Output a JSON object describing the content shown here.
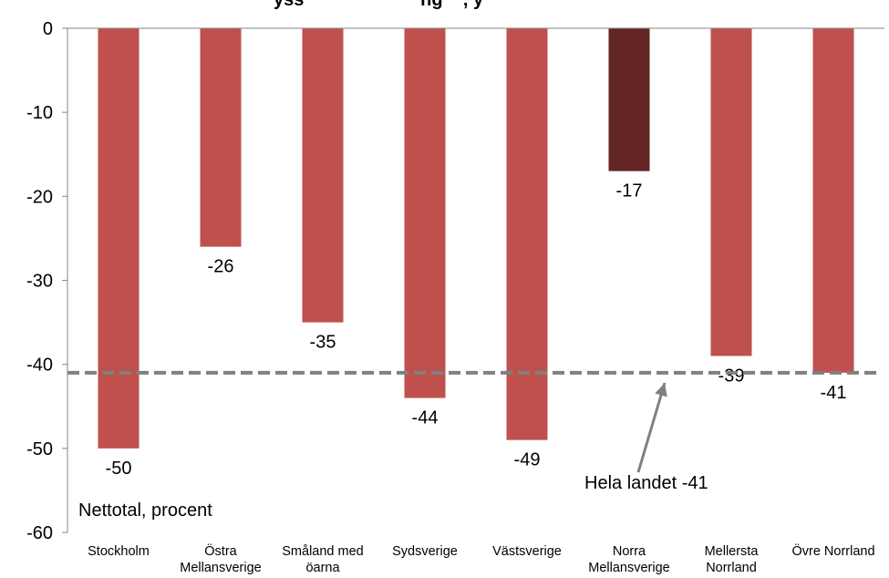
{
  "chart_data": {
    "type": "bar",
    "title_fragment": "yss                       ng    , y",
    "categories": [
      [
        "Stockholm"
      ],
      [
        "Östra",
        "Mellansverige"
      ],
      [
        "Småland med",
        "öarna"
      ],
      [
        "Sydsverige"
      ],
      [
        "Västsverige"
      ],
      [
        "Norra",
        "Mellansverige"
      ],
      [
        "Mellersta",
        "Norrland"
      ],
      [
        "Övre Norrland"
      ]
    ],
    "values": [
      -50,
      -26,
      -35,
      -44,
      -49,
      -17,
      -39,
      -41
    ],
    "data_labels": [
      "-50",
      "-26",
      "-35",
      "-44",
      "-49",
      "-17",
      "-39",
      "-41"
    ],
    "ylim": [
      -60,
      0
    ],
    "yticks": [
      0,
      -10,
      -20,
      -30,
      -40,
      -50,
      -60
    ],
    "ytick_labels": [
      "0",
      "-10",
      "-20",
      "-30",
      "-40",
      "-50",
      "-60"
    ],
    "unit_label": "Nettotal, procent",
    "reference_line": {
      "value": -41,
      "label": "Hela landet -41"
    },
    "highlight_index": 5,
    "colors": {
      "bar": "#c0504d",
      "highlight": "#632523",
      "reference_line": "#808080",
      "axis": "#868686"
    },
    "grid": false,
    "legend": "none"
  }
}
